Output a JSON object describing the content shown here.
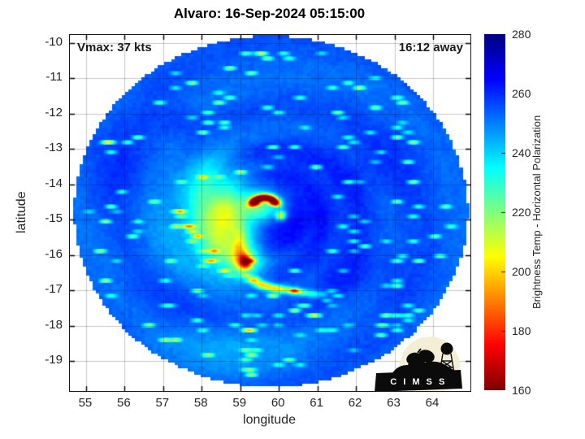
{
  "title": "Alvaro: 16-Sep-2024 05:15:00",
  "logo": {
    "text": "C I M S S"
  },
  "chart_data": {
    "type": "heatmap",
    "title": "Alvaro: 16-Sep-2024 05:15:00",
    "xlabel": "longitude",
    "ylabel": "latitude",
    "xlim": [
      54.58,
      64.97
    ],
    "ylim": [
      -19.85,
      -9.77
    ],
    "x_ticks": [
      55,
      56,
      57,
      58,
      59,
      60,
      61,
      62,
      63,
      64
    ],
    "y_ticks": [
      -10,
      -11,
      -12,
      -13,
      -14,
      -15,
      -16,
      -17,
      -18,
      -19
    ],
    "grid": true,
    "annotations": {
      "vmax": "Vmax: 37 kts",
      "time_offset": "16:12 away"
    },
    "colorbar": {
      "label": "Brightness Temp - Horizontal Polarization",
      "min": 160,
      "max": 280,
      "ticks": [
        280,
        260,
        240,
        220,
        200,
        180,
        160
      ],
      "colormap": "jet reversed (280 K = dark blue, 160 K = dark red)"
    },
    "field": {
      "units": "K",
      "swath": {
        "center_lon": 59.75,
        "center_lat": -14.81,
        "radius_lon": 5.11,
        "radius_lat": 4.97
      },
      "base_temp": 256.5,
      "features": [
        {
          "x": 58.35,
          "y": -14.9,
          "sx": 0.95,
          "sy": 1.15,
          "a": -19
        },
        {
          "x": 58.2,
          "y": -13.85,
          "sx": 0.55,
          "sy": 0.5,
          "a": -10
        },
        {
          "x": 58.6,
          "y": -15.5,
          "sx": 0.45,
          "sy": 0.65,
          "a": -26
        },
        {
          "x": 58.5,
          "y": -14.75,
          "sx": 0.33,
          "sy": 0.38,
          "a": -14
        },
        {
          "x": 59.0,
          "y": -15.9,
          "sx": 0.14,
          "sy": 0.4,
          "a": -26
        },
        {
          "x": 59.15,
          "y": -16.2,
          "sx": 0.3,
          "sy": 0.3,
          "a": -22
        },
        {
          "x": 59.15,
          "y": -16.2,
          "sx": 0.11,
          "sy": 0.13,
          "a": -55
        },
        {
          "x": 59.55,
          "y": -14.62,
          "sx": 0.4,
          "sy": 0.28,
          "a": -28
        },
        {
          "x": 60.05,
          "y": -14.88,
          "sx": 0.09,
          "sy": 0.09,
          "a": -45
        },
        {
          "x": 58.6,
          "y": -18.7,
          "sx": 1.3,
          "sy": 0.7,
          "a": -7
        },
        {
          "x": 60.55,
          "y": -14.85,
          "sx": 0.95,
          "sy": 0.55,
          "a": 9
        },
        {
          "x": 59.8,
          "y": -13.55,
          "sx": 1.3,
          "sy": 0.55,
          "a": 7
        },
        {
          "x": 61.7,
          "y": -16.4,
          "sx": 1.0,
          "sy": 0.65,
          "a": 6
        },
        {
          "x": 57.9,
          "y": -17.4,
          "sx": 1.2,
          "sy": 0.6,
          "a": 4
        },
        {
          "x": 55.9,
          "y": -13.6,
          "sx": 0.9,
          "sy": 0.8,
          "a": 4
        },
        {
          "x": 62.5,
          "y": -13.5,
          "sx": 1.0,
          "sy": 0.8,
          "a": 4
        },
        {
          "x": 59.9,
          "y": -15.45,
          "sx": 0.45,
          "sy": 0.4,
          "a": 8
        },
        {
          "x": 57.45,
          "y": -12.3,
          "sx": 0.45,
          "sy": 0.3,
          "a": 6
        }
      ],
      "eyewall_arc": {
        "x": 59.63,
        "y": -14.6,
        "r": 0.22,
        "dx_scale": 0.75,
        "width": 0.075,
        "a": -100
      },
      "band_streak": [
        {
          "x": 59.35,
          "y": -16.7,
          "a": -38
        },
        {
          "x": 59.52,
          "y": -16.83,
          "a": -42
        },
        {
          "x": 59.7,
          "y": -16.9,
          "a": -36
        },
        {
          "x": 59.9,
          "y": -16.95,
          "a": -40
        },
        {
          "x": 60.12,
          "y": -16.98,
          "a": -34
        },
        {
          "x": 60.38,
          "y": -17.02,
          "a": -38
        },
        {
          "x": 60.62,
          "y": -17.06,
          "a": -28
        },
        {
          "x": 60.88,
          "y": -17.1,
          "a": -22
        },
        {
          "x": 61.15,
          "y": -17.12,
          "a": -15
        }
      ]
    }
  }
}
